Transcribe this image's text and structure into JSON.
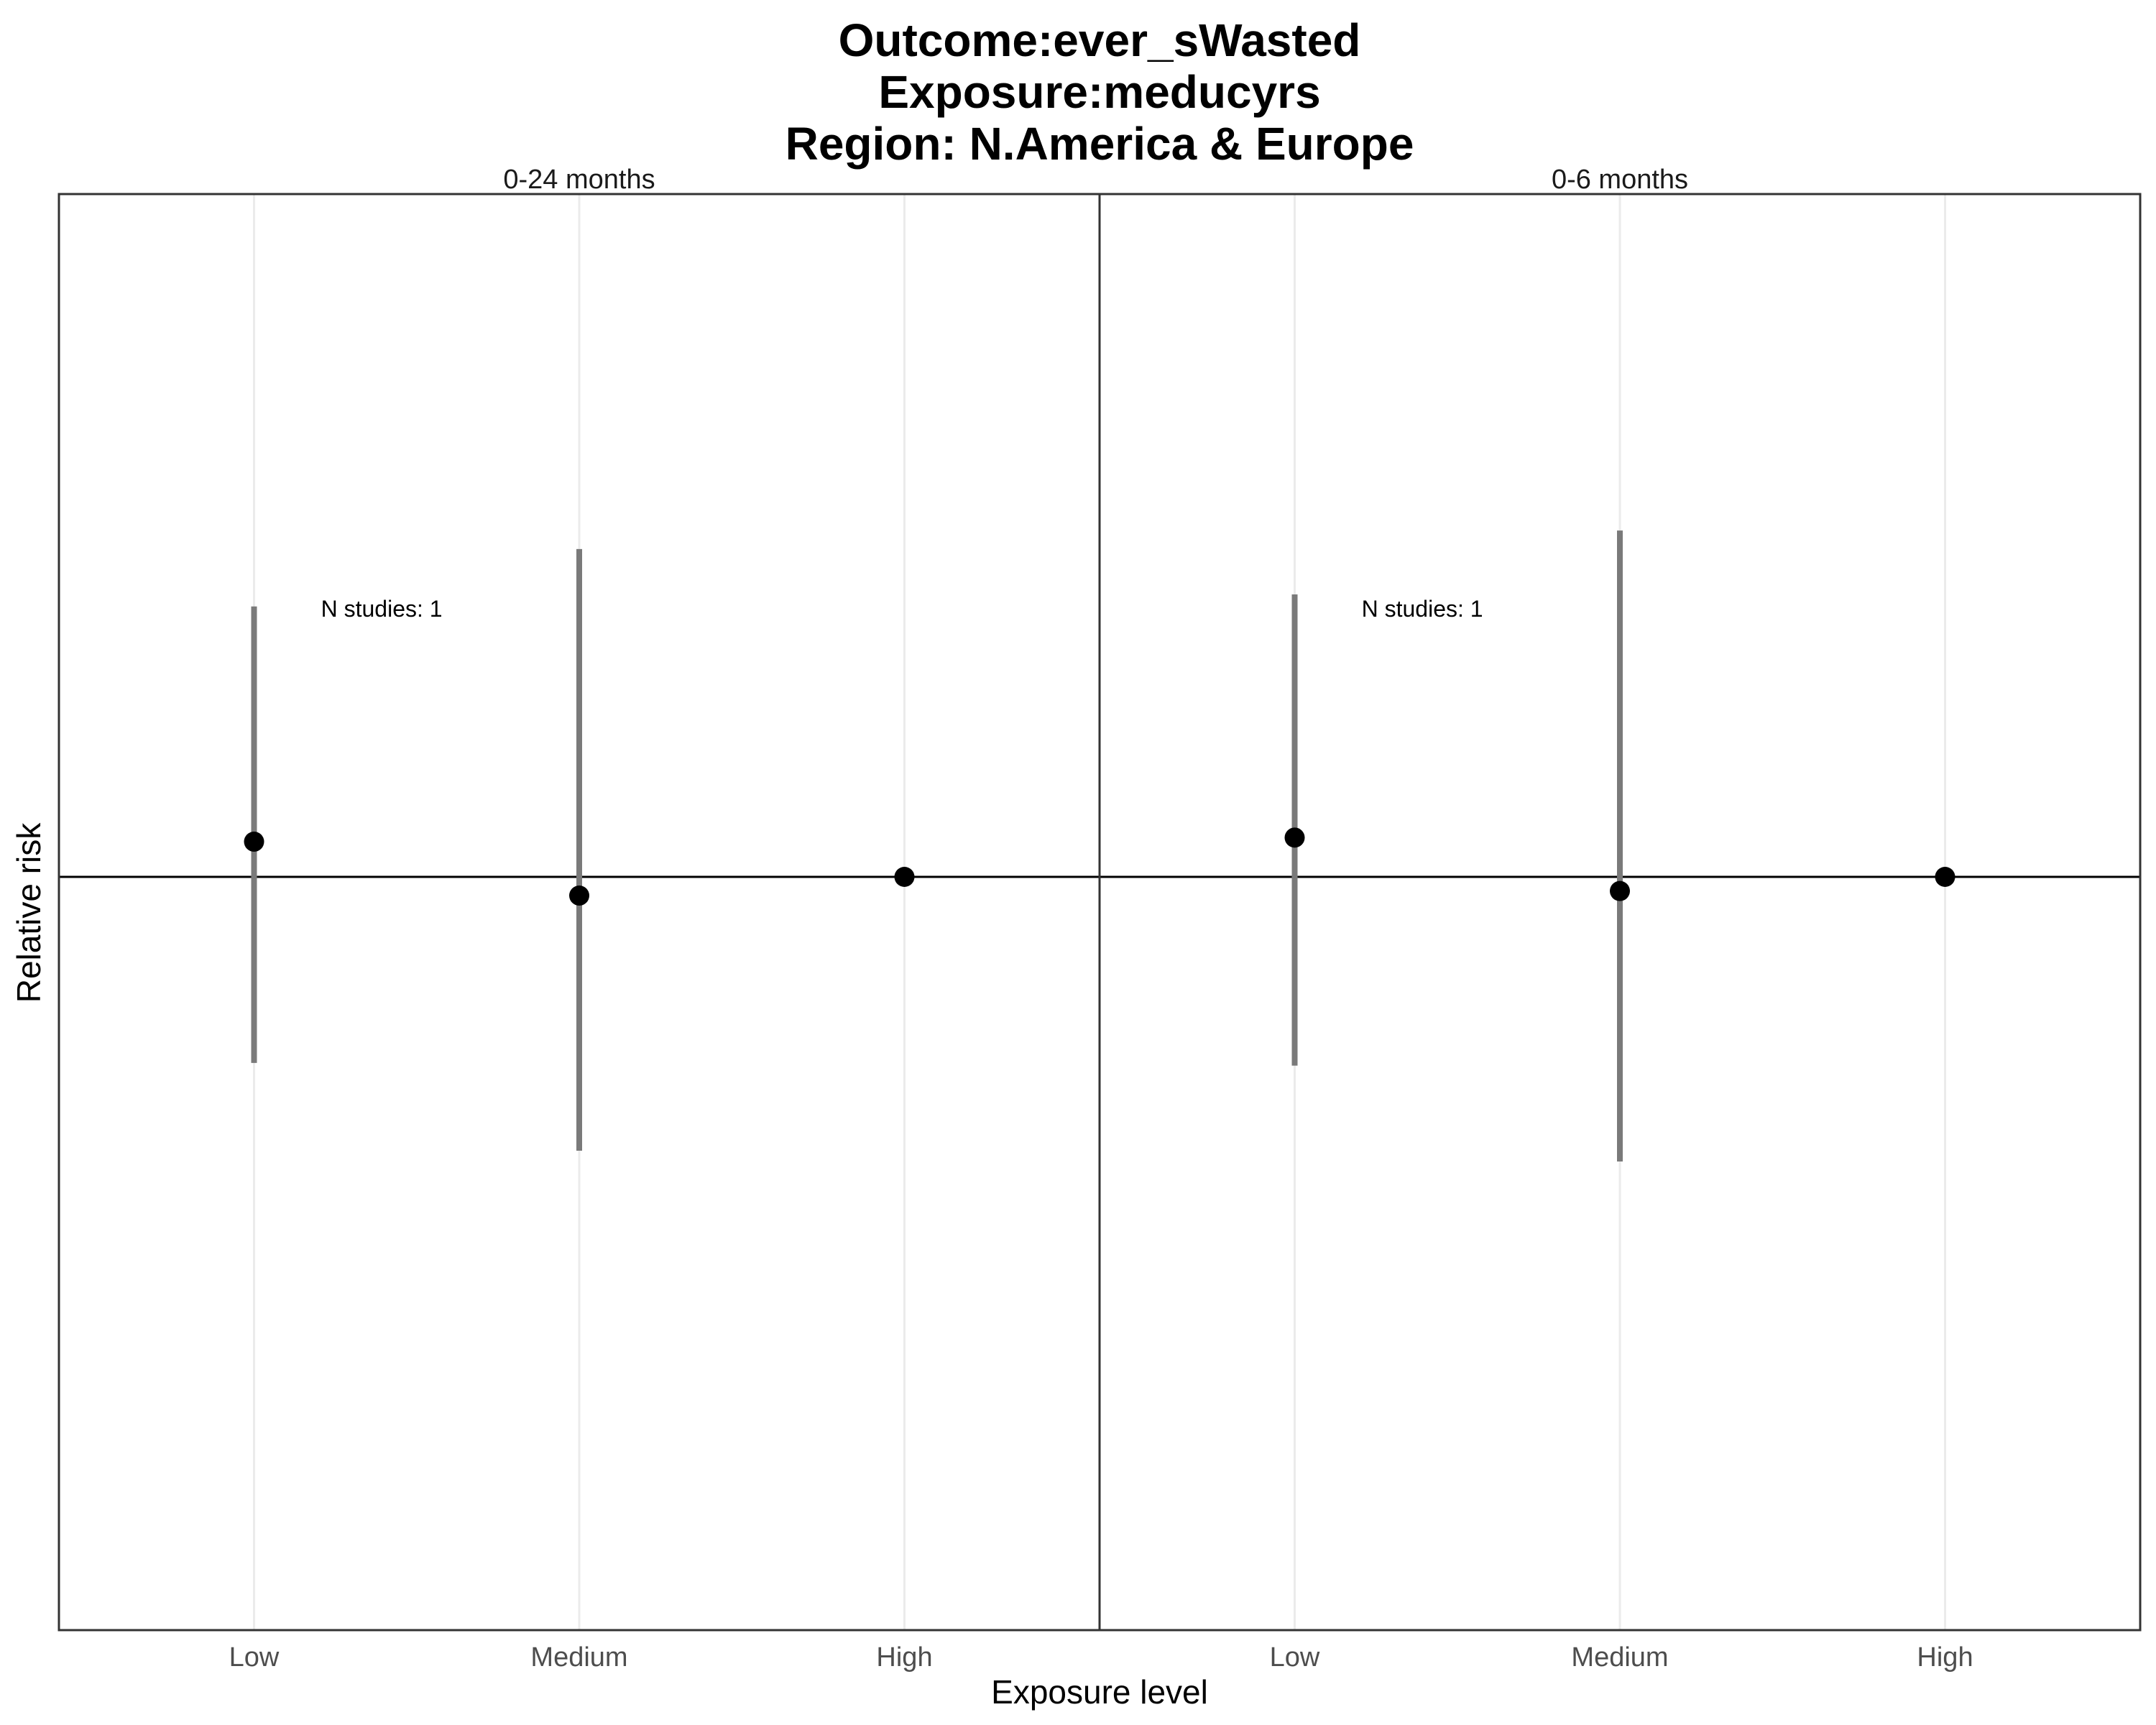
{
  "chart_data": {
    "type": "scatter",
    "title": [
      "Outcome:ever_sWasted",
      "Exposure:meducyrs",
      "Region: N.America & Europe"
    ],
    "xlabel": "Exposure level",
    "ylabel": "Relative risk",
    "categories": [
      "Low",
      "Medium",
      "High"
    ],
    "reference_line": 1,
    "ylim": [
      0.1,
      10
    ],
    "y_scale": "log",
    "grid": "vertical-only",
    "panels": [
      {
        "strip": "0-24 months",
        "annotation": "N studies: 1",
        "estimates": [
          1.3,
          0.87,
          1
        ],
        "lower": [
          0.25,
          0.13,
          null
        ],
        "upper": [
          7.5,
          11.5,
          null
        ]
      },
      {
        "strip": "0-6 months",
        "annotation": "N studies: 1",
        "estimates": [
          1.34,
          0.9,
          1
        ],
        "lower": [
          0.245,
          0.12,
          null
        ],
        "upper": [
          8.2,
          13.2,
          null
        ]
      }
    ]
  }
}
